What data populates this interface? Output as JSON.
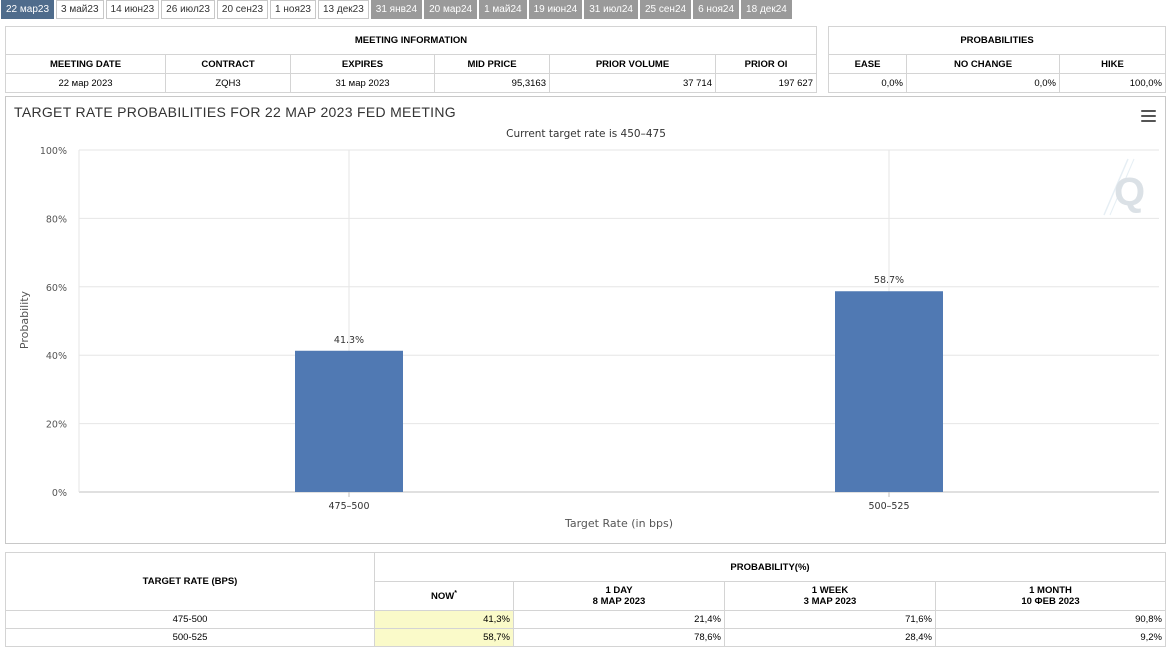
{
  "tabs": [
    {
      "label": "22 мар23",
      "state": "active"
    },
    {
      "label": "3 май23",
      "state": "normal"
    },
    {
      "label": "14 июн23",
      "state": "normal"
    },
    {
      "label": "26 июл23",
      "state": "normal"
    },
    {
      "label": "20 сен23",
      "state": "normal"
    },
    {
      "label": "1 ноя23",
      "state": "normal"
    },
    {
      "label": "13 дек23",
      "state": "normal"
    },
    {
      "label": "31 янв24",
      "state": "grey"
    },
    {
      "label": "20 мар24",
      "state": "grey"
    },
    {
      "label": "1 май24",
      "state": "grey"
    },
    {
      "label": "19 июн24",
      "state": "grey"
    },
    {
      "label": "31 июл24",
      "state": "grey"
    },
    {
      "label": "25 сен24",
      "state": "grey"
    },
    {
      "label": "6 ноя24",
      "state": "grey"
    },
    {
      "label": "18 дек24",
      "state": "grey"
    }
  ],
  "meeting_info": {
    "title": "MEETING INFORMATION",
    "headers": [
      "MEETING DATE",
      "CONTRACT",
      "EXPIRES",
      "MID PRICE",
      "PRIOR VOLUME",
      "PRIOR OI"
    ],
    "row": [
      "22 мар 2023",
      "ZQH3",
      "31 мар 2023",
      "95,3163",
      "37 714",
      "197 627"
    ]
  },
  "probabilities": {
    "title": "PROBABILITIES",
    "headers": [
      "EASE",
      "NO CHANGE",
      "HIKE"
    ],
    "row": [
      "0,0%",
      "0,0%",
      "100,0%"
    ]
  },
  "colors": {
    "bar": "#5079b3",
    "tab_active": "#4f6c8c",
    "tab_grey": "#9a9a9a",
    "now_cell": "#fafac9"
  },
  "chart_data": {
    "type": "bar",
    "title": "TARGET RATE PROBABILITIES FOR 22 MAP 2023 FED MEETING",
    "subtitle": "Current target rate is 450–475",
    "xlabel": "Target Rate (in bps)",
    "ylabel": "Probability",
    "categories": [
      "475–500",
      "500–525"
    ],
    "values": [
      41.3,
      58.7
    ],
    "data_labels": [
      "41.3%",
      "58.7%"
    ],
    "ylim": [
      0,
      100
    ],
    "yticks": [
      0,
      20,
      40,
      60,
      80,
      100
    ],
    "ytick_labels": [
      "0%",
      "20%",
      "40%",
      "60%",
      "80%",
      "100%"
    ],
    "grid": true,
    "legend": "none"
  },
  "bottom_table": {
    "rate_header": "TARGET RATE (BPS)",
    "prob_header": "PROBABILITY(%)",
    "col_now": "NOW",
    "col_now_mark": "*",
    "col_1day": "1 DAY",
    "col_1day_date": "8 MAP 2023",
    "col_1week": "1 WEEK",
    "col_1week_date": "3 MAP 2023",
    "col_1month": "1 MONTH",
    "col_1month_date": "10 ФЕВ 2023",
    "rows": [
      {
        "rate": "475-500",
        "now": "41,3%",
        "day": "21,4%",
        "week": "71,6%",
        "month": "90,8%"
      },
      {
        "rate": "500-525",
        "now": "58,7%",
        "day": "78,6%",
        "week": "28,4%",
        "month": "9,2%"
      }
    ]
  }
}
